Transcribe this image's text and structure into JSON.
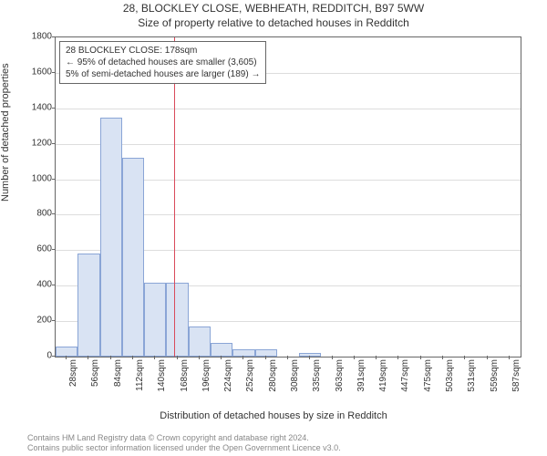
{
  "title": "28, BLOCKLEY CLOSE, WEBHEATH, REDDITCH, B97 5WW",
  "subtitle": "Size of property relative to detached houses in Redditch",
  "ylabel": "Number of detached properties",
  "xlabel": "Distribution of detached houses by size in Redditch",
  "attribution1": "Contains HM Land Registry data © Crown copyright and database right 2024.",
  "attribution2": "Contains public sector information licensed under the Open Government Licence v3.0.",
  "info_line1": "28 BLOCKLEY CLOSE: 178sqm",
  "info_line2": "← 95% of detached houses are smaller (3,605)",
  "info_line3": "5% of semi-detached houses are larger (189) →",
  "chart": {
    "type": "histogram",
    "ylim": [
      0,
      1800
    ],
    "ytick_step": 200,
    "yticks": [
      0,
      200,
      400,
      600,
      800,
      1000,
      1200,
      1400,
      1600,
      1800
    ],
    "x_labels": [
      "28sqm",
      "56sqm",
      "84sqm",
      "112sqm",
      "140sqm",
      "168sqm",
      "196sqm",
      "224sqm",
      "252sqm",
      "280sqm",
      "308sqm",
      "335sqm",
      "363sqm",
      "391sqm",
      "419sqm",
      "447sqm",
      "475sqm",
      "503sqm",
      "531sqm",
      "559sqm",
      "587sqm"
    ],
    "bar_values": [
      55,
      580,
      1345,
      1120,
      415,
      415,
      170,
      75,
      40,
      40,
      0,
      20,
      0,
      0,
      0,
      0,
      0,
      0,
      0,
      0,
      0
    ],
    "bar_fill": "#d9e3f3",
    "bar_border": "#8aa5d6",
    "marker_x_index": 5.36,
    "marker_color": "#d94a5a",
    "grid_color": "#dddddd",
    "axis_color": "#666666",
    "info_border": "#666666",
    "text_color": "#333333",
    "bg": "#ffffff"
  }
}
